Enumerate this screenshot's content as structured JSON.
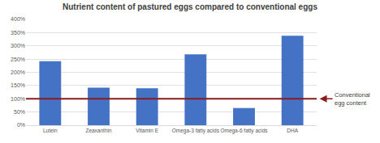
{
  "chart_data": {
    "type": "bar",
    "title": "Nutrient content of pastured eggs compared to conventional eggs",
    "categories": [
      "Lutein",
      "Zeaxanthin",
      "Vitamin E",
      "Omega-3 fatty acids",
      "Omega-6 fatty acids",
      "DHA"
    ],
    "values": [
      242,
      142,
      140,
      268,
      65,
      338
    ],
    "color": "#4472c4",
    "ylim": [
      0,
      400
    ],
    "yticks": [
      {
        "value": 0,
        "label": "0%"
      },
      {
        "value": 50,
        "label": "50%"
      },
      {
        "value": 100,
        "label": "100%"
      },
      {
        "value": 150,
        "label": "150%"
      },
      {
        "value": 200,
        "label": "200%"
      },
      {
        "value": 250,
        "label": "250%"
      },
      {
        "value": 300,
        "label": "300%"
      },
      {
        "value": 350,
        "label": "350%"
      },
      {
        "value": 400,
        "label": "400%"
      }
    ],
    "grid": true,
    "reference_line": {
      "value": 100,
      "label_lines": [
        "Conventional",
        "egg content"
      ],
      "color": "#8b1a1a"
    }
  }
}
